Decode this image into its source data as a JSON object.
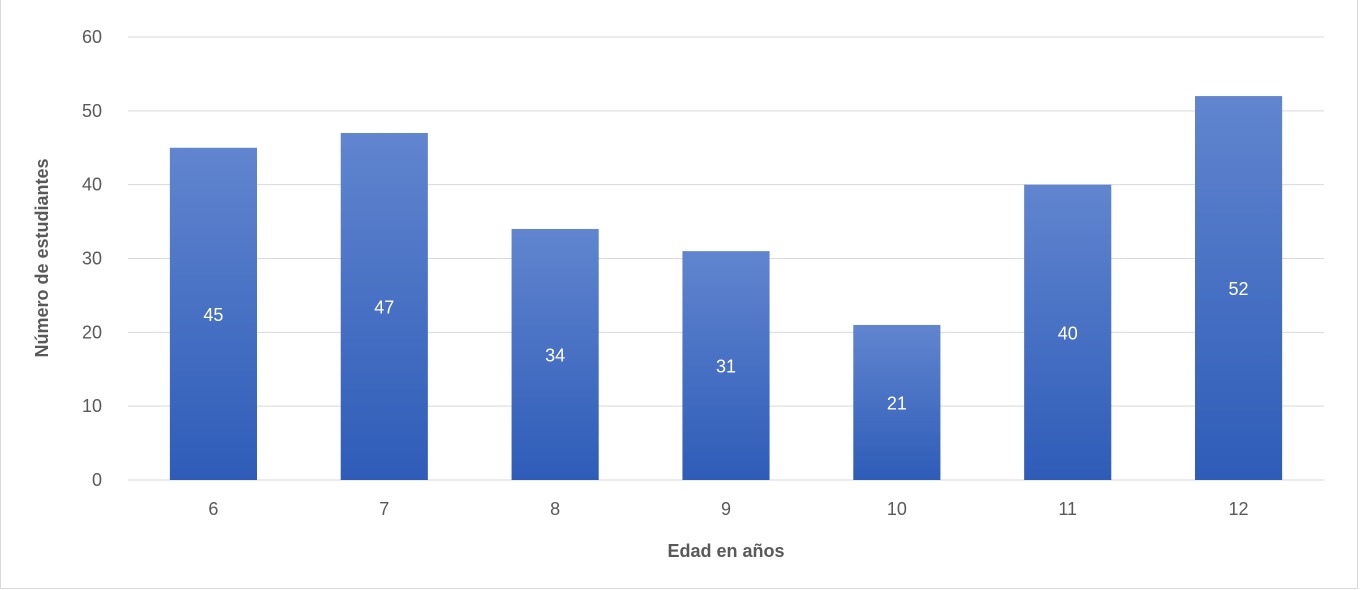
{
  "chart_data": {
    "type": "bar",
    "categories": [
      "6",
      "7",
      "8",
      "9",
      "10",
      "11",
      "12"
    ],
    "values": [
      45,
      47,
      34,
      31,
      21,
      40,
      52
    ],
    "data_labels": [
      "45",
      "47",
      "34",
      "31",
      "21",
      "40",
      "52"
    ],
    "title": "",
    "xlabel": "Edad en años",
    "ylabel": "Número de estudiantes",
    "ylim": [
      0,
      60
    ],
    "yticks": [
      0,
      10,
      20,
      30,
      40,
      50,
      60
    ],
    "ytick_labels": [
      "0",
      "10",
      "20",
      "30",
      "40",
      "50",
      "60"
    ],
    "grid": true,
    "legend": "none",
    "colors": {
      "bar_top": "#6185cf",
      "bar_bottom": "#2e5cb8",
      "grid": "#d9d9d9",
      "text": "#595959",
      "label": "#ffffff"
    }
  }
}
